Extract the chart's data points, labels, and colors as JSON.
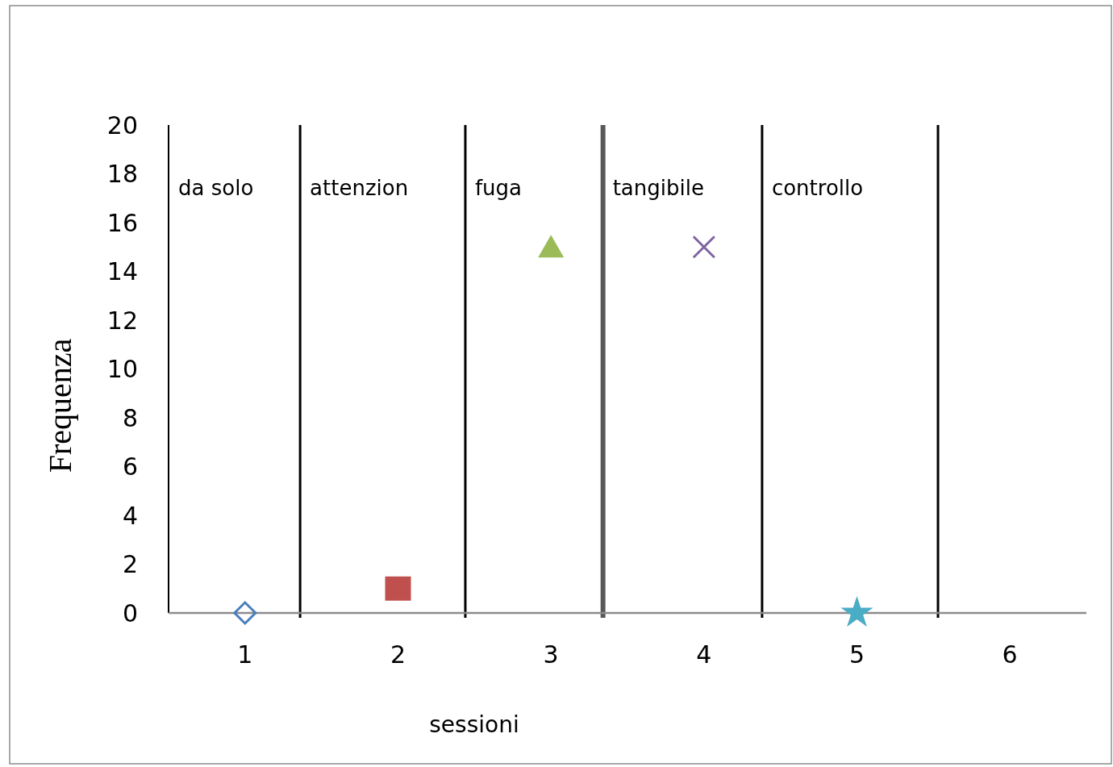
{
  "chart_data": {
    "type": "scatter",
    "xlabel": "sessioni",
    "ylabel": "Frequenza",
    "xlim": [
      0.5,
      6.5
    ],
    "xticks": [
      1,
      2,
      3,
      4,
      5,
      6
    ],
    "ylim": [
      0,
      20
    ],
    "yticks": [
      0,
      2,
      4,
      6,
      8,
      10,
      12,
      14,
      16,
      18,
      20
    ],
    "grid": false,
    "series": [
      {
        "x": [
          1
        ],
        "values": [
          0
        ],
        "color": "#4a7ebb",
        "marker": "diamond"
      },
      {
        "x": [
          2
        ],
        "values": [
          1
        ],
        "color": "#c0504d",
        "marker": "square"
      },
      {
        "x": [
          3
        ],
        "values": [
          15
        ],
        "color": "#9bbb59",
        "marker": "triangle"
      },
      {
        "x": [
          4
        ],
        "values": [
          15
        ],
        "color": "#8064a2",
        "marker": "cross"
      },
      {
        "x": [
          5
        ],
        "values": [
          0
        ],
        "color": "#4bacc6",
        "marker": "star"
      }
    ],
    "ref_lines": [
      {
        "axis": "x",
        "value": 1.36,
        "color": "#000000"
      },
      {
        "axis": "x",
        "value": 2.44,
        "color": "#000000"
      },
      {
        "axis": "x",
        "value": 3.34,
        "color": "#595959"
      },
      {
        "axis": "x",
        "value": 4.38,
        "color": "#000000"
      },
      {
        "axis": "x",
        "value": 5.53,
        "color": "#000000"
      }
    ],
    "annotations": [
      "da solo",
      "attenzion",
      "fuga",
      "tangibile",
      "controllo"
    ]
  }
}
